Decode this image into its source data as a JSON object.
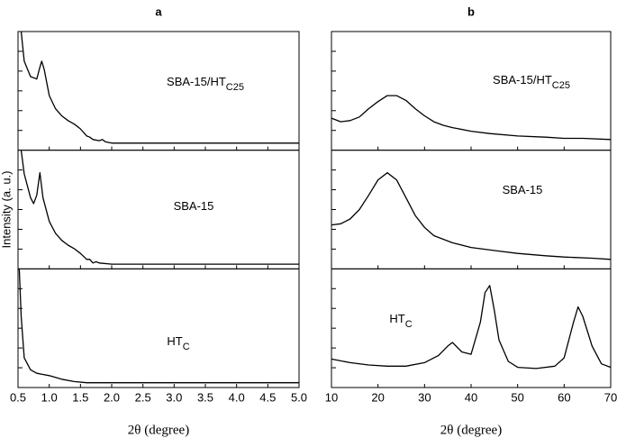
{
  "chart_data": [
    {
      "type": "line",
      "title": "a",
      "xlabel": "2θ (degree)",
      "ylabel": "Intensity (a. u.)",
      "color": "#000000",
      "xlim": [
        0.5,
        5.0
      ],
      "xticks": [
        0.5,
        {
          "value": 1,
          "label": "1.0"
        },
        1.5,
        {
          "value": 2,
          "label": "2.0"
        },
        2.5,
        {
          "value": 3,
          "label": "3.0"
        },
        3.5,
        {
          "value": 4,
          "label": "4.0"
        },
        4.5,
        {
          "value": 5,
          "label": "5.0"
        }
      ],
      "panels": [
        {
          "label": "SBA-15/HT",
          "label_sub": "C25",
          "ylim": [
            0,
            100
          ],
          "x": [
            0.55,
            0.6,
            0.7,
            0.8,
            0.85,
            0.88,
            0.92,
            1.0,
            1.1,
            1.2,
            1.3,
            1.4,
            1.5,
            1.6,
            1.65,
            1.7,
            1.8,
            1.85,
            1.9,
            2.0,
            2.5,
            3.0,
            4.0,
            5.0
          ],
          "values": [
            100,
            75,
            62,
            60,
            70,
            75,
            68,
            46,
            35,
            29,
            25,
            22,
            18,
            12,
            11,
            9,
            8,
            9,
            7,
            6,
            6,
            6,
            6,
            6
          ]
        },
        {
          "label": "SBA-15",
          "ylim": [
            0,
            100
          ],
          "x": [
            0.55,
            0.6,
            0.7,
            0.75,
            0.8,
            0.85,
            0.9,
            1.0,
            1.1,
            1.2,
            1.3,
            1.4,
            1.5,
            1.6,
            1.65,
            1.7,
            1.75,
            1.8,
            2.0,
            3.0,
            5.0
          ],
          "values": [
            100,
            80,
            60,
            55,
            62,
            81,
            60,
            40,
            30,
            24,
            20,
            17,
            13,
            8,
            8,
            5,
            6,
            5,
            4,
            4,
            4
          ]
        },
        {
          "label": "HT",
          "label_sub": "C",
          "ylim": [
            0,
            100
          ],
          "x": [
            0.52,
            0.55,
            0.6,
            0.7,
            0.8,
            0.9,
            1.0,
            1.2,
            1.4,
            1.6,
            2.0,
            5.0
          ],
          "values": [
            100,
            60,
            25,
            15,
            12,
            11,
            10,
            7,
            5,
            4,
            4,
            4
          ]
        }
      ]
    },
    {
      "type": "line",
      "title": "b",
      "xlabel": "2θ (degree)",
      "color": "#000000",
      "xlim": [
        10,
        70
      ],
      "xticks": [
        10,
        20,
        30,
        40,
        50,
        60,
        70
      ],
      "panels": [
        {
          "label": "SBA-15/HT",
          "label_sub": "C25",
          "ylim": [
            0,
            100
          ],
          "x": [
            10,
            12,
            14,
            16,
            18,
            20,
            22,
            24,
            26,
            28,
            30,
            32,
            34,
            36,
            40,
            44,
            50,
            56,
            60,
            64,
            70
          ],
          "values": [
            27,
            24,
            25,
            28,
            35,
            41,
            46,
            46,
            42,
            35,
            29,
            24,
            21,
            19,
            16,
            14,
            12,
            11,
            10,
            10,
            9
          ]
        },
        {
          "label": "SBA-15",
          "ylim": [
            0,
            100
          ],
          "x": [
            10,
            12,
            14,
            16,
            18,
            20,
            22,
            24,
            26,
            28,
            30,
            32,
            36,
            40,
            46,
            50,
            56,
            60,
            66,
            70
          ],
          "values": [
            37,
            38,
            42,
            50,
            62,
            75,
            81,
            75,
            60,
            45,
            35,
            28,
            22,
            18,
            15,
            13,
            11,
            10,
            9,
            8
          ]
        },
        {
          "label": "HT",
          "label_sub": "C",
          "ylim": [
            0,
            100
          ],
          "x": [
            10,
            14,
            18,
            22,
            26,
            30,
            33,
            35,
            36,
            38,
            40,
            42,
            43,
            44,
            45,
            46,
            48,
            50,
            54,
            58,
            60,
            62,
            63,
            64,
            66,
            68,
            70
          ],
          "values": [
            24,
            21,
            19,
            18,
            18,
            21,
            27,
            35,
            38,
            30,
            28,
            55,
            80,
            86,
            65,
            40,
            22,
            17,
            16,
            18,
            25,
            55,
            68,
            60,
            35,
            20,
            17
          ]
        }
      ]
    }
  ]
}
